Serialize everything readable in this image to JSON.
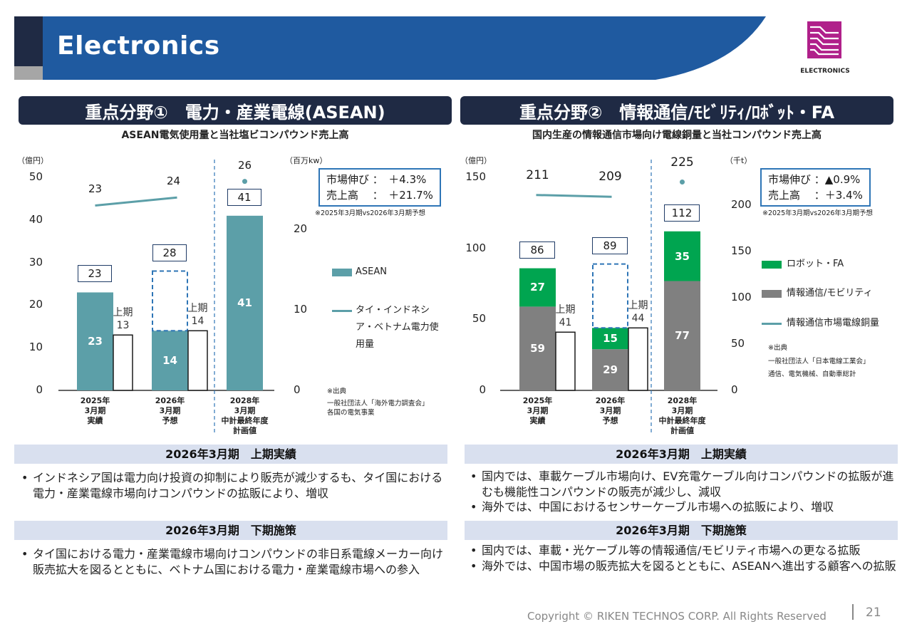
{
  "header": {
    "title": "Electronics",
    "logo_text": "ELECTRONICS"
  },
  "colors": {
    "navy": "#1f2a44",
    "blue_band": "#1f5aa0",
    "asean_bar": "#5c9fa8",
    "robot_fa": "#00a550",
    "info_mobility": "#808080",
    "line": "#5c9fa8",
    "box_border": "#2e75b6",
    "band_bg": "#d9e0ef"
  },
  "left": {
    "section_title": "重点分野①　電力・産業電線(ASEAN)",
    "subtitle": "ASEAN電気使用量と当社塩ビコンパウンド売上高",
    "unit_left": "（億円）",
    "unit_right": "（百万kw）",
    "growth_box": "市場伸び ：　＋4.3%\n売上高　 ：　＋21.7%",
    "growth_note": "※2025年3月期vs2026年3月期予想",
    "legend": {
      "asean": "ASEAN",
      "line": "タイ・インドネシア・ベトナム電力使用量"
    },
    "source_title": "※出典",
    "source_body": "一般社団法人「海外電力調査会」\n各国の電気事業",
    "first_half_label": "上期",
    "x_labels": [
      "2025年\n3月期\n実績",
      "2026年\n3月期\n予想",
      "2028年\n3月期\n中計最終年度\n計画値"
    ]
  },
  "right": {
    "section_title": "重点分野②　情報通信/ﾓﾋﾞﾘﾃｨ/ﾛﾎﾞｯﾄ・FA",
    "subtitle": "国内生産の情報通信市場向け電線銅量と当社コンパウンド売上高",
    "unit_left": "（億円）",
    "unit_right": "（千t）",
    "growth_box": "市場伸び ：▲0.9%\n売上高　 ：＋3.4%",
    "growth_note": "※2025年3月期vs2026年3月期予想",
    "legend": {
      "robot": "ロボット・FA",
      "info": "情報通信/モビリティ",
      "line": "情報通信市場電線銅量"
    },
    "source_title": "※出典",
    "source_body": "一般社団法人「日本電線工業会」\n通信、電気機械、自動車総計",
    "first_half_label": "上期",
    "x_labels": [
      "2025年\n3月期\n実績",
      "2026年\n3月期\n予想",
      "2028年\n3月期\n中計最終年度\n計画値"
    ]
  },
  "chart_data": [
    {
      "type": "bar",
      "title": "ASEAN電気使用量と当社塩ビコンパウンド売上高",
      "categories": [
        "2025年3月期 実績",
        "2026年3月期 予想",
        "2028年3月期 中計最終年度 計画値"
      ],
      "ylim": [
        0,
        50
      ],
      "y_ticks": [
        0,
        10,
        20,
        30,
        40,
        50
      ],
      "y2lim": [
        0,
        26.5
      ],
      "y2_ticks": [
        0,
        10,
        20
      ],
      "series": [
        {
          "name": "ASEAN",
          "values": [
            23,
            14,
            41
          ],
          "totals": [
            23,
            28,
            41
          ]
        },
        {
          "name": "上期",
          "values": [
            13,
            14,
            null
          ]
        },
        {
          "name": "タイ・インドネシア・ベトナム電力使用量",
          "axis": "right",
          "values": [
            23,
            24,
            26
          ]
        }
      ]
    },
    {
      "type": "bar",
      "title": "国内生産の情報通信市場向け電線銅量と当社コンパウンド売上高",
      "categories": [
        "2025年3月期 実績",
        "2026年3月期 予想",
        "2028年3月期 中計最終年度 計画値"
      ],
      "ylim": [
        0,
        150
      ],
      "y_ticks": [
        0,
        50,
        100,
        150
      ],
      "y2lim": [
        0,
        230
      ],
      "y2_ticks": [
        0,
        50,
        100,
        150,
        200
      ],
      "series": [
        {
          "name": "情報通信/モビリティ",
          "values": [
            59,
            29,
            77
          ]
        },
        {
          "name": "ロボット・FA",
          "values": [
            27,
            15,
            35
          ]
        },
        {
          "name": "total",
          "values": [
            86,
            89,
            112
          ]
        },
        {
          "name": "上期",
          "values": [
            41,
            44,
            null
          ]
        },
        {
          "name": "情報通信市場電線銅量",
          "axis": "right",
          "values": [
            211,
            209,
            225
          ]
        }
      ]
    }
  ],
  "left_text": {
    "band1": "2026年3月期　上期実績",
    "bullets1": [
      "インドネシア国は電力向け投資の抑制により販売が減少するも、タイ国における電力・産業電線市場向けコンパウンドの拡販により、増収"
    ],
    "band2": "2026年3月期　下期施策",
    "bullets2": [
      "タイ国における電力・産業電線市場向けコンパウンドの非日系電線メーカー向け販売拡大を図るとともに、ベトナム国における電力・産業電線市場への参入"
    ]
  },
  "right_text": {
    "band1": "2026年3月期　上期実績",
    "bullets1": [
      "国内では、車載ケーブル市場向け、EV充電ケーブル向けコンパウンドの拡販が進むも機能性コンパウンドの販売が減少し、減収",
      "海外では、中国におけるセンサーケーブル市場への拡販により、増収"
    ],
    "band2": "2026年3月期　下期施策",
    "bullets2": [
      "国内では、車載・光ケーブル等の情報通信/モビリティ市場への更なる拡販",
      "海外では、中国市場の販売拡大を図るとともに、ASEANへ進出する顧客への拡販"
    ]
  },
  "footer": {
    "copyright": "Copyright © RIKEN TECHNOS CORP. All Rights Reserved",
    "page": "21"
  }
}
